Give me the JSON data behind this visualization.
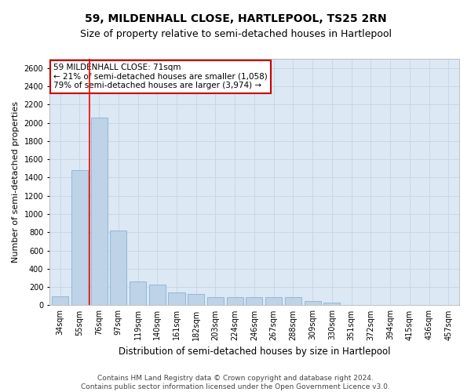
{
  "title1": "59, MILDENHALL CLOSE, HARTLEPOOL, TS25 2RN",
  "title2": "Size of property relative to semi-detached houses in Hartlepool",
  "xlabel": "Distribution of semi-detached houses by size in Hartlepool",
  "ylabel": "Number of semi-detached properties",
  "categories": [
    "34sqm",
    "55sqm",
    "76sqm",
    "97sqm",
    "119sqm",
    "140sqm",
    "161sqm",
    "182sqm",
    "203sqm",
    "224sqm",
    "246sqm",
    "267sqm",
    "288sqm",
    "309sqm",
    "330sqm",
    "351sqm",
    "372sqm",
    "394sqm",
    "415sqm",
    "436sqm",
    "457sqm"
  ],
  "values": [
    100,
    1480,
    2060,
    820,
    260,
    230,
    140,
    120,
    90,
    90,
    90,
    90,
    90,
    50,
    30,
    0,
    0,
    0,
    0,
    0,
    0
  ],
  "bar_color": "#bed3e8",
  "bar_edge_color": "#7aaace",
  "grid_color": "#c5d5e5",
  "bg_color": "#dce8f4",
  "annotation_text": "59 MILDENHALL CLOSE: 71sqm\n← 21% of semi-detached houses are smaller (1,058)\n79% of semi-detached houses are larger (3,974) →",
  "annotation_box_color": "#ffffff",
  "annotation_border_color": "#cc0000",
  "red_line_x": 1.5,
  "ylim": [
    0,
    2700
  ],
  "yticks": [
    0,
    200,
    400,
    600,
    800,
    1000,
    1200,
    1400,
    1600,
    1800,
    2000,
    2200,
    2400,
    2600
  ],
  "footer1": "Contains HM Land Registry data © Crown copyright and database right 2024.",
  "footer2": "Contains public sector information licensed under the Open Government Licence v3.0.",
  "title1_fontsize": 10,
  "title2_fontsize": 9,
  "xlabel_fontsize": 8.5,
  "ylabel_fontsize": 8,
  "tick_fontsize": 7,
  "annotation_fontsize": 7.5,
  "footer_fontsize": 6.5
}
